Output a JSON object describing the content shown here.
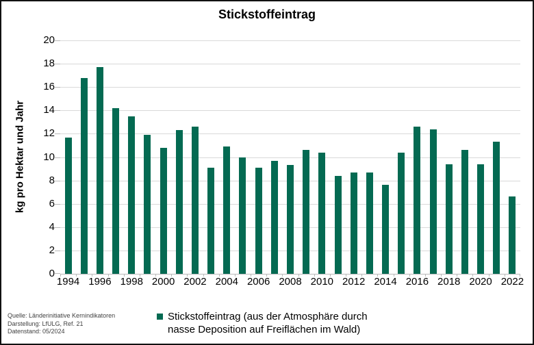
{
  "title": "Stickstoffeintrag",
  "y_axis_label": "kg pro Hektar und Jahr",
  "chart_data": {
    "type": "bar",
    "title": "Stickstoffeintrag",
    "xlabel": "",
    "ylabel": "kg pro Hektar und Jahr",
    "categories": [
      "1994",
      "1995",
      "1996",
      "1997",
      "1998",
      "1999",
      "2000",
      "2001",
      "2002",
      "2003",
      "2004",
      "2005",
      "2006",
      "2007",
      "2008",
      "2009",
      "2010",
      "2011",
      "2012",
      "2013",
      "2014",
      "2015",
      "2016",
      "2017",
      "2018",
      "2019",
      "2020",
      "2021",
      "2022"
    ],
    "values": [
      11.7,
      16.8,
      17.7,
      14.2,
      13.5,
      11.9,
      10.8,
      12.3,
      12.6,
      9.1,
      10.9,
      10.0,
      9.1,
      9.7,
      9.3,
      10.6,
      10.4,
      8.4,
      8.7,
      8.7,
      7.6,
      10.4,
      12.6,
      12.4,
      9.4,
      10.6,
      9.4,
      11.3,
      6.6
    ],
    "ylim": [
      0,
      20
    ],
    "ytick_step": 2,
    "xtick_label_every": 2,
    "grid": true,
    "bar_color": "#046a52",
    "legend_position": "bottom",
    "legend_label": "Stickstoffeintrag (aus der Atmosphäre durch nasse Deposition auf Freiflächen im Wald)"
  },
  "legend": {
    "marker_color": "#046a52",
    "lines": [
      "Stickstoffeintrag (aus der Atmosphäre durch",
      "nasse Deposition auf Freiflächen im Wald)"
    ]
  },
  "footer": {
    "lines": [
      "Quelle: Länderinitiative Kernindikatoren",
      "Darstellung: LfULG, Ref. 21",
      "Datenstand: 05/2024"
    ]
  },
  "colors": {
    "bar": "#046a52",
    "gridline": "#d9d9d9",
    "axis": "#b9b9b9",
    "text": "#000000",
    "footer_text": "#3f3f3f",
    "background": "#ffffff",
    "border": "#111111"
  }
}
